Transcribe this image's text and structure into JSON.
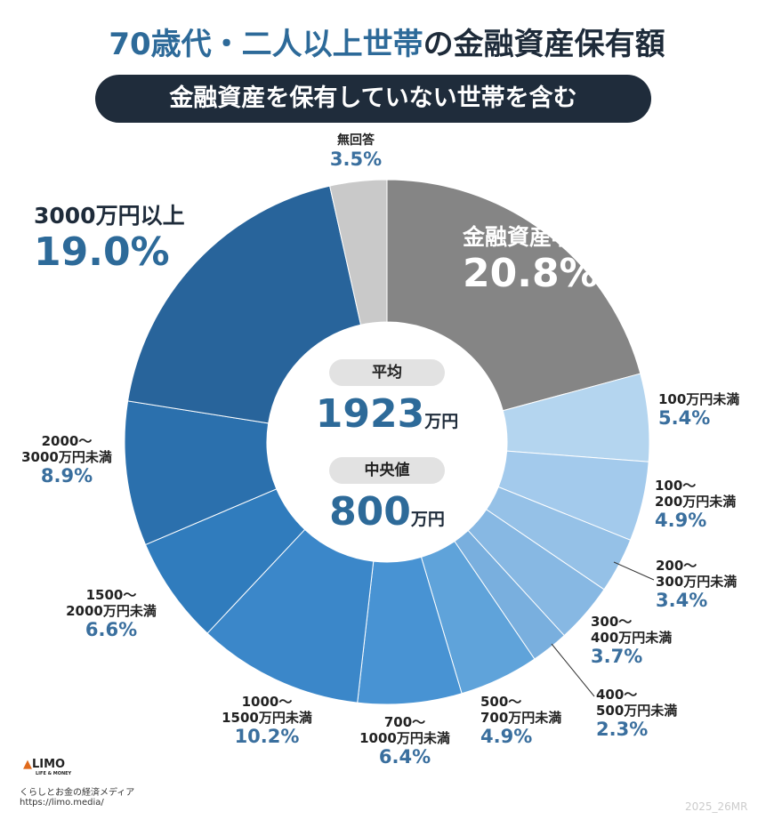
{
  "title_lead": "70歳代・二人以上世帯",
  "title": "の金融資産保有額",
  "subtitle": "金融資産を保有していない世帯を含む",
  "chart_data": {
    "type": "pie",
    "donut": true,
    "categories": [
      "金融資産非保有",
      "100万円未満",
      "100〜\n200万円未満",
      "200〜\n300万円未満",
      "300〜\n400万円未満",
      "400〜\n500万円未満",
      "500〜\n700万円未満",
      "700〜\n1000万円未満",
      "1000〜\n1500万円未満",
      "1500〜\n2000万円未満",
      "2000〜\n3000万円未満",
      "3000万円以上",
      "無回答"
    ],
    "values": [
      20.8,
      5.4,
      4.9,
      3.4,
      3.7,
      2.3,
      4.9,
      6.4,
      10.2,
      6.6,
      8.9,
      19.0,
      3.5
    ],
    "value_labels": [
      "20.8%",
      "5.4%",
      "4.9%",
      "3.4%",
      "3.7%",
      "2.3%",
      "4.9%",
      "6.4%",
      "10.2%",
      "6.6%",
      "8.9%",
      "19.0%",
      "3.5%"
    ],
    "colors": [
      "#858585",
      "#b4d5ef",
      "#a3caec",
      "#95c1e7",
      "#87b8e3",
      "#79afde",
      "#5fa3da",
      "#4893d3",
      "#3b87c9",
      "#307cbd",
      "#2b70ad",
      "#28649b",
      "#c9c9c9"
    ],
    "center": {
      "mean_label": "平均",
      "mean": 1923,
      "mean_unit": "万円",
      "median_label": "中央値",
      "median": 800,
      "median_unit": "万円"
    }
  },
  "footer": {
    "logo": "LIMO",
    "logo_sub": "LIFE & MONEY",
    "tagline": "くらしとお金の経済メディア",
    "url": "https://limo.media/",
    "code": "2025_26MR"
  }
}
